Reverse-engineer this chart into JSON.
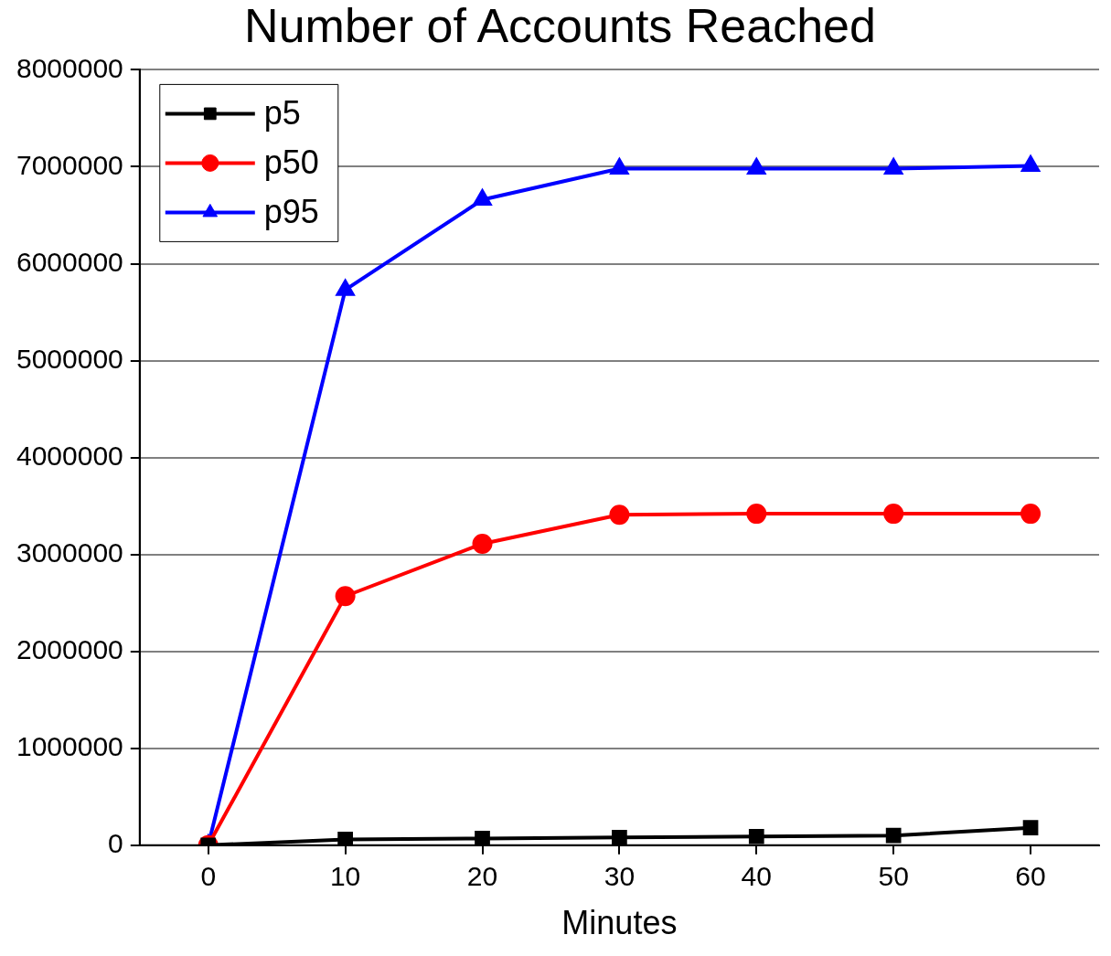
{
  "chart_data": {
    "type": "line",
    "title": "Number of Accounts Reached",
    "xlabel": "Minutes",
    "x": [
      0,
      10,
      20,
      30,
      40,
      50,
      60
    ],
    "series": [
      {
        "name": "p5",
        "color": "#000000",
        "marker": "square",
        "values": [
          0,
          60000,
          70000,
          80000,
          90000,
          100000,
          180000
        ]
      },
      {
        "name": "p50",
        "color": "#ff0000",
        "marker": "circle",
        "values": [
          0,
          2570000,
          3110000,
          3410000,
          3420000,
          3420000,
          3420000
        ]
      },
      {
        "name": "p95",
        "color": "#0000ff",
        "marker": "triangle",
        "values": [
          0,
          5730000,
          6660000,
          6980000,
          6980000,
          6980000,
          7010000
        ]
      }
    ],
    "xlim": [
      -5,
      65
    ],
    "xticks": [
      0,
      10,
      20,
      30,
      40,
      50,
      60
    ],
    "ylim": [
      0,
      8000000
    ],
    "yticks": [
      0,
      1000000,
      2000000,
      3000000,
      4000000,
      5000000,
      6000000,
      7000000,
      8000000
    ],
    "grid": "y",
    "legend": "top left",
    "line_style": "solid"
  }
}
